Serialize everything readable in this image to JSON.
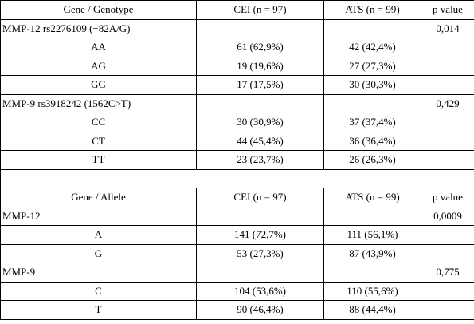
{
  "table": {
    "header1": {
      "col1": "Gene / Genotype",
      "col2": "CEI (n = 97)",
      "col3": "ATS (n = 99)",
      "col4": "p value"
    },
    "groups1": [
      {
        "label": "MMP-12 rs2276109 (−82A/G)",
        "p": "0,014",
        "rows": [
          {
            "name": "AA",
            "cei": "61 (62,9%)",
            "ats": "42 (42,4%)"
          },
          {
            "name": "AG",
            "cei": "19 (19,6%)",
            "ats": "27 (27,3%)"
          },
          {
            "name": "GG",
            "cei": "17 (17,5%)",
            "ats": "30 (30,3%)"
          }
        ]
      },
      {
        "label": "MMP-9 rs3918242 (1562C>T)",
        "p": "0,429",
        "rows": [
          {
            "name": "CC",
            "cei": "30 (30,9%)",
            "ats": "37 (37,4%)"
          },
          {
            "name": "CT",
            "cei": "44 (45,4%)",
            "ats": "36 (36,4%)"
          },
          {
            "name": "TT",
            "cei": "23 (23,7%)",
            "ats": "26 (26,3%)"
          }
        ]
      }
    ],
    "header2": {
      "col1": "Gene / Allele",
      "col2": "CEI (n = 97)",
      "col3": "ATS (n = 99)",
      "col4": "p value"
    },
    "groups2": [
      {
        "label": "MMP-12",
        "p": "0,0009",
        "rows": [
          {
            "name": "A",
            "cei": "141 (72,7%)",
            "ats": "111 (56,1%)"
          },
          {
            "name": "G",
            "cei": "53 (27,3%)",
            "ats": "87 (43,9%)"
          }
        ]
      },
      {
        "label": "MMP-9",
        "p": "0,775",
        "rows": [
          {
            "name": "C",
            "cei": "104 (53,6%)",
            "ats": "110 (55,6%)"
          },
          {
            "name": "T",
            "cei": "90 (46,4%)",
            "ats": "88 (44,4%)"
          }
        ]
      }
    ]
  }
}
